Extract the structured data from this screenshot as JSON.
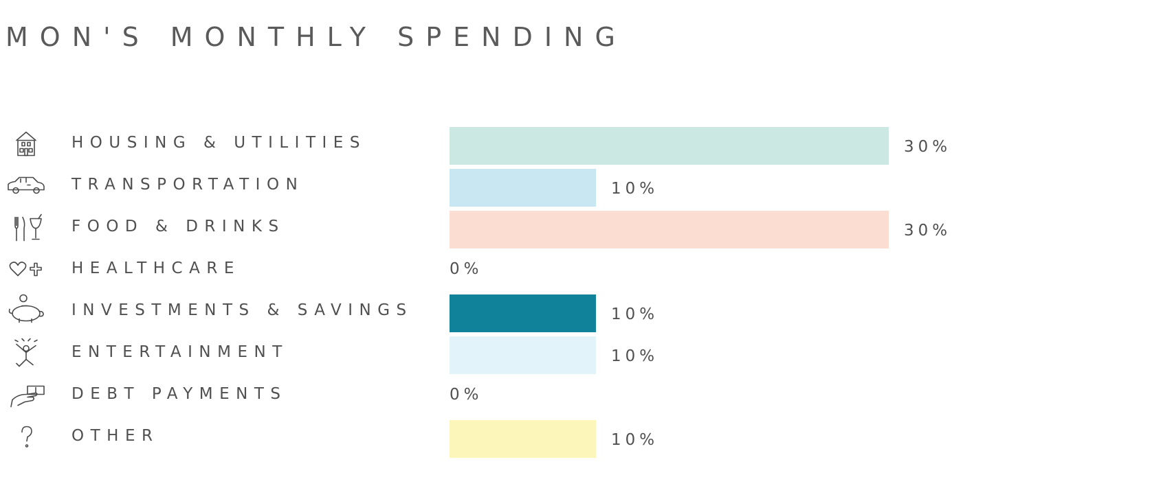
{
  "chart_data": {
    "type": "bar",
    "orientation": "horizontal",
    "title": "MON'S MONTHLY SPENDING",
    "xlim": [
      0,
      30
    ],
    "grid": false,
    "categories": [
      "HOUSING & UTILITIES",
      "TRANSPORTATION",
      "FOOD & DRINKS",
      "HEALTHCARE",
      "INVESTMENTS & SAVINGS",
      "ENTERTAINMENT",
      "DEBT PAYMENTS",
      "OTHER"
    ],
    "values": [
      30,
      10,
      30,
      0,
      10,
      10,
      0,
      10
    ],
    "value_labels": [
      "30%",
      "10%",
      "30%",
      "0%",
      "10%",
      "10%",
      "0%",
      "10%"
    ],
    "colors": [
      "#cce8e2",
      "#c8e7f2",
      "#fcddd2",
      "#f0f0f0",
      "#10829a",
      "#e2f3fa",
      "#f0f0f0",
      "#fdf6bb"
    ],
    "icons": [
      "house-icon",
      "car-icon",
      "fork-knife-glass-icon",
      "heart-plus-icon",
      "piggy-bank-icon",
      "dancing-person-icon",
      "hand-money-icon",
      "question-mark-icon"
    ]
  }
}
